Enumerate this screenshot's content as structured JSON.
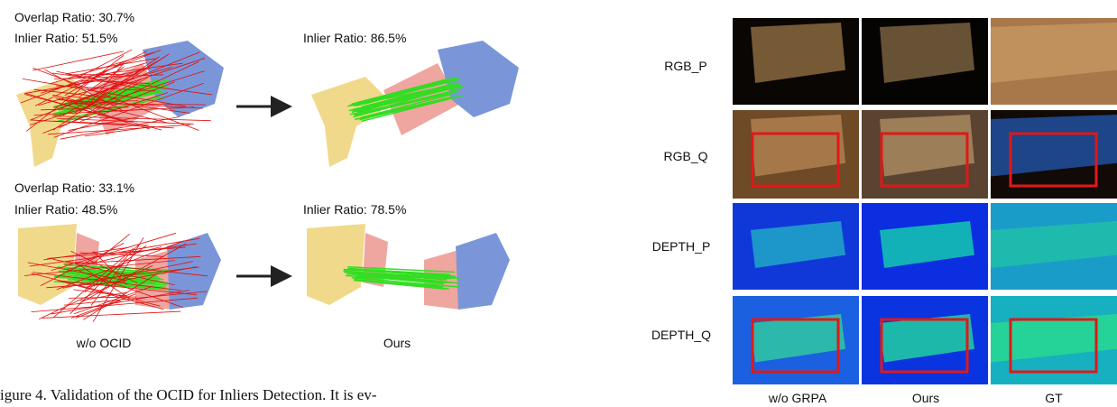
{
  "left_panel": {
    "rows": [
      {
        "before": {
          "overlap": "Overlap Ratio: 30.7%",
          "inlier": "Inlier Ratio: 51.5%"
        },
        "after": {
          "inlier": "Inlier Ratio: 86.5%"
        }
      },
      {
        "before": {
          "overlap": "Overlap Ratio: 33.1%",
          "inlier": "Inlier Ratio: 48.5%"
        },
        "after": {
          "inlier": "Inlier Ratio: 78.5%"
        }
      }
    ],
    "column_labels": [
      "w/o OCID",
      "Ours"
    ]
  },
  "caption": "igure 4.  Validation of the OCID for Inliers Detection.  It is ev-",
  "right_panel": {
    "row_labels": [
      "RGB_P",
      "RGB_Q",
      "DEPTH_P",
      "DEPTH_Q"
    ],
    "column_labels": [
      "w/o GRPA",
      "Ours",
      "GT"
    ]
  }
}
